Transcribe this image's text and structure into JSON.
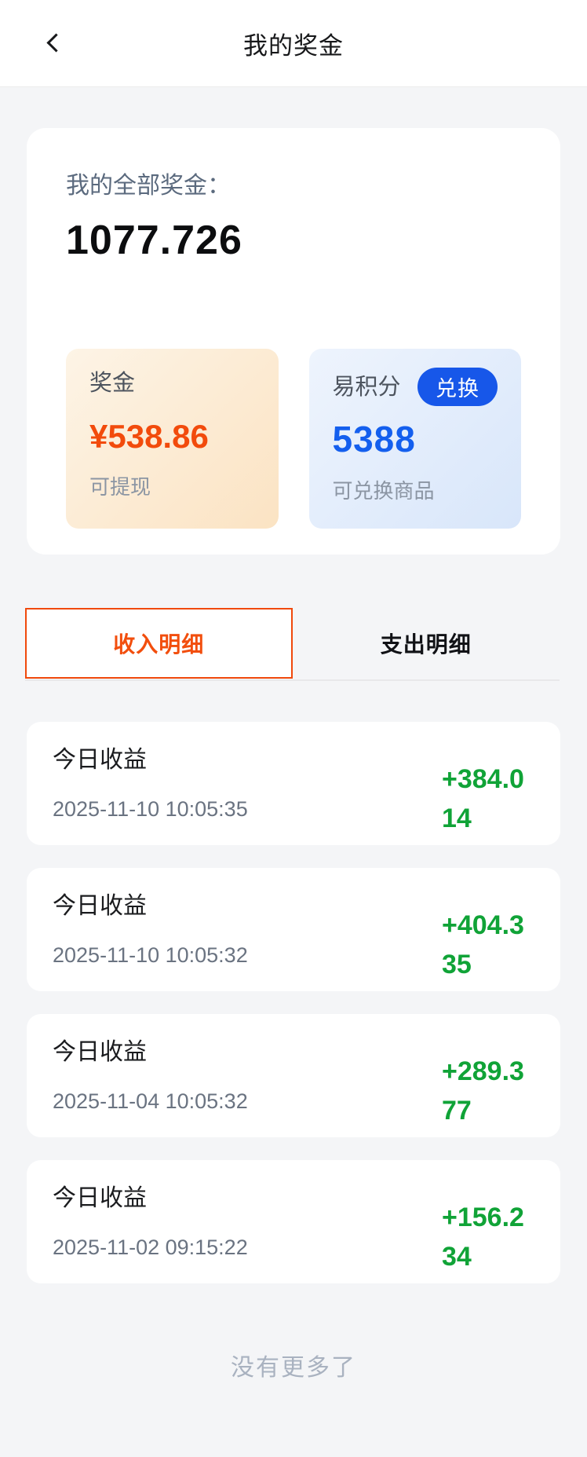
{
  "header": {
    "title": "我的奖金",
    "back_icon": "chevron-left"
  },
  "summary": {
    "label": "我的全部奖金：",
    "total": "1077.726",
    "bonus_card": {
      "label": "奖金",
      "amount": "¥538.86",
      "note": "可提现"
    },
    "points_card": {
      "label": "易积分",
      "exchange_button": "兑换",
      "amount": "5388",
      "note": "可兑换商品"
    }
  },
  "tabs": [
    {
      "label": "收入明细",
      "active": true
    },
    {
      "label": "支出明细",
      "active": false
    }
  ],
  "records": [
    {
      "title": "今日收益",
      "time": "2025-11-10 10:05:35",
      "amount": "+384.014"
    },
    {
      "title": "今日收益",
      "time": "2025-11-10 10:05:32",
      "amount": "+404.335"
    },
    {
      "title": "今日收益",
      "time": "2025-11-04 10:05:32",
      "amount": "+289.377"
    },
    {
      "title": "今日收益",
      "time": "2025-11-02 09:15:22",
      "amount": "+156.234"
    }
  ],
  "footer": {
    "no_more_text": "没有更多了"
  },
  "colors": {
    "accent_orange": "#f24b0c",
    "accent_blue": "#1757e9",
    "positive_green": "#10a337",
    "page_background": "#f4f5f7"
  }
}
